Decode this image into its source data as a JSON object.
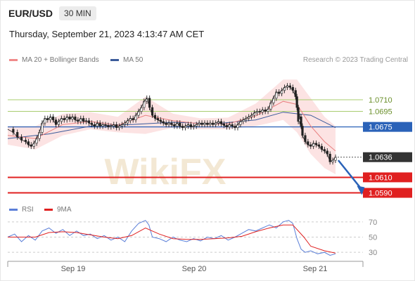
{
  "header": {
    "symbol": "EUR/USD",
    "timeframe": "30 MIN",
    "datetime": "Thursday, September 21, 2023 4:13:47 AM CET"
  },
  "legend": {
    "ma20": {
      "label": "MA 20 + Bollinger Bands",
      "color": "#f08a8a"
    },
    "ma50": {
      "label": "MA 50",
      "color": "#3b5b9a"
    }
  },
  "credit": "Research © 2023 Trading Central",
  "watermark": "WikiFX",
  "rsi_legend": {
    "rsi": {
      "label": "RSI",
      "color": "#5b7fd8"
    },
    "ma9": {
      "label": "9MA",
      "color": "#e02020"
    }
  },
  "chart_data": {
    "type": "line",
    "x_ticks": [
      "Sep 19",
      "Sep 20",
      "Sep 21"
    ],
    "price_range": [
      1.0576,
      1.0748
    ],
    "levels": [
      {
        "label": "1.0710",
        "value": 1.071,
        "kind": "resistance",
        "color": "#a8cc6e"
      },
      {
        "label": "1.0695",
        "value": 1.0695,
        "kind": "resistance",
        "color": "#a8cc6e"
      },
      {
        "label": "1.0675",
        "value": 1.0675,
        "kind": "pivot",
        "color": "#2a62b8"
      },
      {
        "label": "1.0636",
        "value": 1.0636,
        "kind": "last",
        "color": "#333333"
      },
      {
        "label": "1.0610",
        "value": 1.061,
        "kind": "support",
        "color": "#e02020"
      },
      {
        "label": "1.0590",
        "value": 1.059,
        "kind": "support",
        "color": "#e02020"
      }
    ],
    "price_path": [
      [
        0,
        1.0672
      ],
      [
        8,
        1.0668
      ],
      [
        14,
        1.0662
      ],
      [
        20,
        1.0658
      ],
      [
        26,
        1.0656
      ],
      [
        30,
        1.0652
      ],
      [
        34,
        1.065
      ],
      [
        38,
        1.0654
      ],
      [
        42,
        1.066
      ],
      [
        46,
        1.0668
      ],
      [
        50,
        1.068
      ],
      [
        54,
        1.0686
      ],
      [
        58,
        1.0684
      ],
      [
        62,
        1.0688
      ],
      [
        66,
        1.0684
      ],
      [
        70,
        1.0678
      ],
      [
        74,
        1.0682
      ],
      [
        78,
        1.0686
      ],
      [
        82,
        1.0684
      ],
      [
        86,
        1.0688
      ],
      [
        90,
        1.0685
      ],
      [
        94,
        1.0688
      ],
      [
        98,
        1.0684
      ],
      [
        102,
        1.0682
      ],
      [
        106,
        1.0686
      ],
      [
        110,
        1.0682
      ],
      [
        114,
        1.0683
      ],
      [
        118,
        1.068
      ],
      [
        122,
        1.0678
      ],
      [
        126,
        1.0676
      ],
      [
        130,
        1.068
      ],
      [
        134,
        1.0676
      ],
      [
        138,
        1.0678
      ],
      [
        142,
        1.0677
      ],
      [
        146,
        1.0675
      ],
      [
        150,
        1.0676
      ],
      [
        154,
        1.0678
      ],
      [
        158,
        1.0674
      ],
      [
        162,
        1.0676
      ],
      [
        166,
        1.0678
      ],
      [
        170,
        1.068
      ],
      [
        174,
        1.0683
      ],
      [
        178,
        1.0686
      ],
      [
        182,
        1.0684
      ],
      [
        186,
        1.069
      ],
      [
        190,
        1.0695
      ],
      [
        194,
        1.07
      ],
      [
        198,
        1.0708
      ],
      [
        202,
        1.0712
      ],
      [
        206,
        1.07
      ],
      [
        210,
        1.069
      ],
      [
        214,
        1.0686
      ],
      [
        218,
        1.0684
      ],
      [
        222,
        1.0682
      ],
      [
        226,
        1.068
      ],
      [
        230,
        1.0678
      ],
      [
        234,
        1.068
      ],
      [
        238,
        1.0678
      ],
      [
        242,
        1.0676
      ],
      [
        246,
        1.068
      ],
      [
        250,
        1.0676
      ],
      [
        254,
        1.0674
      ],
      [
        258,
        1.0676
      ],
      [
        262,
        1.0678
      ],
      [
        266,
        1.0675
      ],
      [
        270,
        1.0676
      ],
      [
        274,
        1.0678
      ],
      [
        278,
        1.068
      ],
      [
        282,
        1.0678
      ],
      [
        286,
        1.068
      ],
      [
        290,
        1.0678
      ],
      [
        294,
        1.068
      ],
      [
        298,
        1.0678
      ],
      [
        302,
        1.068
      ],
      [
        306,
        1.0682
      ],
      [
        310,
        1.0679
      ],
      [
        314,
        1.0677
      ],
      [
        318,
        1.0675
      ],
      [
        322,
        1.0678
      ],
      [
        326,
        1.0676
      ],
      [
        330,
        1.0674
      ],
      [
        334,
        1.0678
      ],
      [
        338,
        1.0682
      ],
      [
        342,
        1.0684
      ],
      [
        346,
        1.0686
      ],
      [
        350,
        1.0688
      ],
      [
        354,
        1.069
      ],
      [
        358,
        1.0693
      ],
      [
        362,
        1.0695
      ],
      [
        366,
        1.0694
      ],
      [
        370,
        1.0697
      ],
      [
        374,
        1.0695
      ],
      [
        378,
        1.0698
      ],
      [
        382,
        1.0706
      ],
      [
        386,
        1.0712
      ],
      [
        390,
        1.072
      ],
      [
        394,
        1.0718
      ],
      [
        398,
        1.0722
      ],
      [
        402,
        1.0726
      ],
      [
        406,
        1.0728
      ],
      [
        410,
        1.0726
      ],
      [
        414,
        1.0722
      ],
      [
        418,
        1.0714
      ],
      [
        420,
        1.07
      ],
      [
        422,
        1.0682
      ],
      [
        424,
        1.0688
      ],
      [
        426,
        1.0676
      ],
      [
        428,
        1.0664
      ],
      [
        432,
        1.0656
      ],
      [
        436,
        1.0652
      ],
      [
        440,
        1.065
      ],
      [
        444,
        1.0654
      ],
      [
        448,
        1.0652
      ],
      [
        452,
        1.065
      ],
      [
        456,
        1.0646
      ],
      [
        460,
        1.0644
      ],
      [
        464,
        1.064
      ],
      [
        468,
        1.063
      ],
      [
        472,
        1.0632
      ],
      [
        476,
        1.0636
      ]
    ],
    "ma20_path": [
      [
        0,
        1.0664
      ],
      [
        40,
        1.066
      ],
      [
        80,
        1.0678
      ],
      [
        120,
        1.0682
      ],
      [
        160,
        1.0677
      ],
      [
        200,
        1.069
      ],
      [
        240,
        1.0683
      ],
      [
        280,
        1.0679
      ],
      [
        320,
        1.0679
      ],
      [
        360,
        1.0689
      ],
      [
        400,
        1.0708
      ],
      [
        420,
        1.0704
      ],
      [
        440,
        1.0676
      ],
      [
        460,
        1.0656
      ],
      [
        476,
        1.0644
      ]
    ],
    "ma50_path": [
      [
        0,
        1.066
      ],
      [
        60,
        1.0666
      ],
      [
        120,
        1.0676
      ],
      [
        180,
        1.0678
      ],
      [
        240,
        1.0681
      ],
      [
        300,
        1.0679
      ],
      [
        360,
        1.0684
      ],
      [
        400,
        1.0694
      ],
      [
        440,
        1.069
      ],
      [
        476,
        1.0674
      ]
    ],
    "bollinger": {
      "upper": [
        [
          0,
          1.0676
        ],
        [
          40,
          1.0676
        ],
        [
          80,
          1.0692
        ],
        [
          120,
          1.0694
        ],
        [
          160,
          1.0688
        ],
        [
          200,
          1.0714
        ],
        [
          240,
          1.0692
        ],
        [
          280,
          1.0686
        ],
        [
          320,
          1.0687
        ],
        [
          360,
          1.0705
        ],
        [
          400,
          1.0736
        ],
        [
          420,
          1.0736
        ],
        [
          440,
          1.0712
        ],
        [
          460,
          1.0688
        ],
        [
          476,
          1.0676
        ]
      ],
      "lower": [
        [
          476,
          1.0614
        ],
        [
          460,
          1.0622
        ],
        [
          440,
          1.064
        ],
        [
          420,
          1.0668
        ],
        [
          400,
          1.0684
        ],
        [
          360,
          1.0676
        ],
        [
          320,
          1.0672
        ],
        [
          280,
          1.0672
        ],
        [
          240,
          1.0674
        ],
        [
          200,
          1.0666
        ],
        [
          160,
          1.0668
        ],
        [
          120,
          1.0672
        ],
        [
          80,
          1.0664
        ],
        [
          40,
          1.0646
        ],
        [
          0,
          1.0652
        ]
      ]
    },
    "forecast_arrow": {
      "from": [
        480,
        1.0632
      ],
      "to": [
        505,
        1.059
      ]
    },
    "rsi": {
      "levels": [
        70,
        50,
        30
      ],
      "range": [
        20,
        80
      ],
      "rsi_path": [
        [
          0,
          50
        ],
        [
          10,
          54
        ],
        [
          20,
          44
        ],
        [
          30,
          52
        ],
        [
          40,
          46
        ],
        [
          50,
          58
        ],
        [
          60,
          62
        ],
        [
          70,
          55
        ],
        [
          80,
          60
        ],
        [
          90,
          52
        ],
        [
          100,
          58
        ],
        [
          110,
          52
        ],
        [
          120,
          54
        ],
        [
          130,
          48
        ],
        [
          140,
          52
        ],
        [
          150,
          46
        ],
        [
          160,
          50
        ],
        [
          170,
          44
        ],
        [
          180,
          58
        ],
        [
          190,
          68
        ],
        [
          200,
          72
        ],
        [
          205,
          66
        ],
        [
          210,
          50
        ],
        [
          220,
          48
        ],
        [
          230,
          44
        ],
        [
          240,
          50
        ],
        [
          250,
          46
        ],
        [
          260,
          44
        ],
        [
          270,
          48
        ],
        [
          280,
          45
        ],
        [
          290,
          50
        ],
        [
          300,
          48
        ],
        [
          310,
          52
        ],
        [
          320,
          46
        ],
        [
          330,
          50
        ],
        [
          340,
          55
        ],
        [
          350,
          60
        ],
        [
          360,
          58
        ],
        [
          370,
          62
        ],
        [
          380,
          66
        ],
        [
          390,
          62
        ],
        [
          400,
          70
        ],
        [
          408,
          72
        ],
        [
          414,
          68
        ],
        [
          420,
          48
        ],
        [
          426,
          34
        ],
        [
          432,
          30
        ],
        [
          440,
          32
        ],
        [
          450,
          28
        ],
        [
          460,
          30
        ],
        [
          468,
          26
        ],
        [
          476,
          28
        ]
      ],
      "ma9_path": [
        [
          0,
          50
        ],
        [
          20,
          50
        ],
        [
          40,
          50
        ],
        [
          60,
          56
        ],
        [
          80,
          57
        ],
        [
          100,
          56
        ],
        [
          120,
          53
        ],
        [
          140,
          50
        ],
        [
          160,
          48
        ],
        [
          180,
          52
        ],
        [
          200,
          62
        ],
        [
          220,
          54
        ],
        [
          240,
          48
        ],
        [
          260,
          47
        ],
        [
          280,
          47
        ],
        [
          300,
          48
        ],
        [
          320,
          49
        ],
        [
          340,
          51
        ],
        [
          360,
          57
        ],
        [
          380,
          62
        ],
        [
          400,
          66
        ],
        [
          414,
          66
        ],
        [
          430,
          50
        ],
        [
          440,
          38
        ],
        [
          460,
          32
        ],
        [
          476,
          29
        ]
      ]
    }
  }
}
